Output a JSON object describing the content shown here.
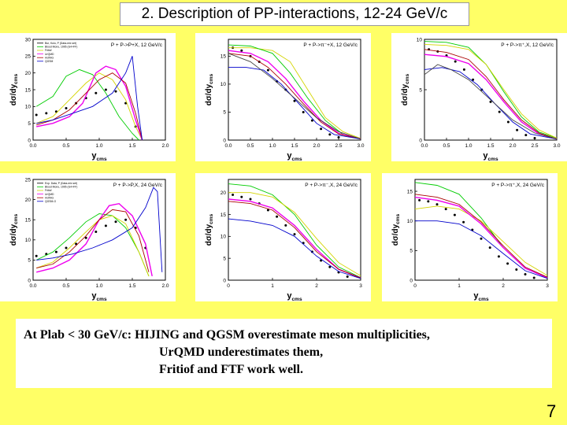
{
  "slide": {
    "title": "2. Description of PP-interactions, 12-24 GeV/c",
    "page_number": "7",
    "notes": [
      "At Plab < 30 GeV/c: HIJING and QGSM overestimate meson multiplicities,",
      "UrQMD underestimates them,",
      "Fritiof and FTF work well."
    ]
  },
  "colors": {
    "data": "#000000",
    "geant4": "#000000",
    "fritiof": "#d4d400",
    "ftf": "#ee00ee",
    "urqmd": "#0000cc",
    "hijing": "#00cc00",
    "qgsm": "#aa0000",
    "extra": "#444444"
  },
  "chart_data": [
    {
      "type": "line",
      "title": "P + P->P+X, 12 GeV/c",
      "xlabel": "y",
      "xlabel_sub": "cms",
      "ylabel": "dσ/dy",
      "ylabel_sub": "cms",
      "xlim": [
        0,
        2
      ],
      "ylim": [
        0,
        30
      ],
      "xticks": [
        "0.0",
        "0.5",
        "1.0",
        "1.5",
        "2.0"
      ],
      "yticks": [
        "0",
        "5",
        "10",
        "15",
        "20",
        "25",
        "30"
      ],
      "legend": [
        "Bur, Kulu, P (Data-mix set)",
        "Blood Mono, 1995 (G4+FF)",
        "Fritiof",
        "UrQMD",
        "HIJING",
        "QGSM"
      ],
      "series": [
        {
          "color_key": "data",
          "marker": true,
          "x": [
            0.05,
            0.2,
            0.35,
            0.5,
            0.65,
            0.8,
            0.95,
            1.1,
            1.25,
            1.4,
            1.55
          ],
          "y": [
            7.5,
            8,
            8.5,
            9.5,
            11,
            12.5,
            14,
            15,
            14.5,
            11,
            4
          ]
        },
        {
          "color_key": "hijing",
          "x": [
            0.05,
            0.3,
            0.5,
            0.7,
            0.9,
            1.1,
            1.3,
            1.5,
            1.6
          ],
          "y": [
            10,
            13,
            19,
            21,
            19.5,
            14,
            7,
            2,
            0
          ]
        },
        {
          "color_key": "fritiof",
          "x": [
            0.05,
            0.3,
            0.55,
            0.8,
            1.0,
            1.2,
            1.4,
            1.55,
            1.65
          ],
          "y": [
            5,
            7,
            12,
            17,
            20,
            18,
            12,
            4,
            0
          ]
        },
        {
          "color_key": "ftf",
          "x": [
            0.05,
            0.3,
            0.55,
            0.75,
            0.95,
            1.1,
            1.25,
            1.4,
            1.55,
            1.65
          ],
          "y": [
            4,
            5,
            7,
            11,
            20,
            22,
            21,
            16,
            6,
            0
          ]
        },
        {
          "color_key": "qgsm",
          "x": [
            0.05,
            0.3,
            0.55,
            0.8,
            1.0,
            1.2,
            1.4,
            1.55,
            1.65
          ],
          "y": [
            4.5,
            6,
            9,
            14,
            18,
            20,
            17,
            8,
            0
          ]
        },
        {
          "color_key": "urqmd",
          "x": [
            0.05,
            0.3,
            0.6,
            0.9,
            1.2,
            1.4,
            1.5,
            1.58,
            1.65
          ],
          "y": [
            5,
            6,
            8,
            10,
            14,
            20,
            25,
            10,
            0
          ]
        }
      ]
    },
    {
      "type": "line",
      "title": "P + P->π⁻+X, 12 GeV/c",
      "xlabel": "y",
      "xlabel_sub": "cms",
      "ylabel": "dσ/dy",
      "ylabel_sub": "cms",
      "xlim": [
        0,
        3
      ],
      "ylim": [
        0,
        18
      ],
      "xticks": [
        "0.0",
        "0.5",
        "1.0",
        "1.5",
        "2.0",
        "2.5",
        "3.0"
      ],
      "yticks": [
        "0",
        "5",
        "10",
        "15"
      ],
      "legend": [],
      "series": [
        {
          "color_key": "data",
          "marker": true,
          "x": [
            0.1,
            0.3,
            0.5,
            0.7,
            0.9,
            1.1,
            1.3,
            1.5,
            1.7,
            1.9,
            2.1,
            2.3,
            2.5
          ],
          "y": [
            16.5,
            16,
            15,
            14,
            12.5,
            10.5,
            9,
            7,
            5,
            3.5,
            2,
            1,
            0.5
          ]
        },
        {
          "color_key": "fritiof",
          "x": [
            0,
            0.5,
            1.0,
            1.4,
            1.8,
            2.2,
            2.6,
            3.0
          ],
          "y": [
            16.5,
            16.5,
            16,
            14,
            9,
            4,
            1.5,
            0.3
          ]
        },
        {
          "color_key": "hijing",
          "x": [
            0,
            0.5,
            1.0,
            1.4,
            1.8,
            2.2,
            2.6,
            3.0
          ],
          "y": [
            17,
            16.8,
            15.5,
            12,
            7.5,
            3.5,
            1,
            0.2
          ]
        },
        {
          "color_key": "ftf",
          "x": [
            0,
            0.5,
            0.9,
            1.3,
            1.7,
            2.1,
            2.5,
            3.0
          ],
          "y": [
            16,
            15.5,
            14,
            11,
            7,
            3.5,
            1.2,
            0.2
          ]
        },
        {
          "color_key": "qgsm",
          "x": [
            0,
            0.5,
            0.9,
            1.3,
            1.7,
            2.1,
            2.5,
            3.0
          ],
          "y": [
            15.5,
            15,
            13,
            10,
            6.5,
            3.2,
            1.1,
            0.2
          ]
        },
        {
          "color_key": "urqmd",
          "x": [
            0,
            0.4,
            0.8,
            1.2,
            1.6,
            2.0,
            2.4,
            3.0
          ],
          "y": [
            13,
            13,
            12.5,
            10,
            6.5,
            3,
            1,
            0.2
          ]
        },
        {
          "color_key": "extra",
          "x": [
            0,
            0.5,
            1.0,
            1.5,
            2.0,
            2.5,
            3.0
          ],
          "y": [
            15.5,
            14,
            11,
            7.5,
            4,
            1.5,
            0.2
          ]
        }
      ]
    },
    {
      "type": "line",
      "title": "P + P->π⁺,X, 12 GeV/c",
      "xlabel": "y",
      "xlabel_sub": "cms",
      "ylabel": "dσ/dy",
      "ylabel_sub": "cms",
      "xlim": [
        0,
        3
      ],
      "ylim": [
        0,
        10
      ],
      "xticks": [
        "0.0",
        "0.5",
        "1.0",
        "1.5",
        "2.0",
        "2.5",
        "3.0"
      ],
      "yticks": [
        "0",
        "5",
        "10"
      ],
      "legend": [],
      "series": [
        {
          "color_key": "data",
          "marker": true,
          "x": [
            0.1,
            0.3,
            0.5,
            0.7,
            0.9,
            1.1,
            1.3,
            1.5,
            1.7,
            1.9,
            2.1,
            2.3,
            2.5
          ],
          "y": [
            9,
            8.8,
            8.4,
            7.8,
            7,
            6,
            5,
            3.8,
            2.8,
            1.8,
            1,
            0.5,
            0.2
          ]
        },
        {
          "color_key": "hijing",
          "x": [
            0,
            0.5,
            1.0,
            1.4,
            1.8,
            2.2,
            2.6,
            3.0
          ],
          "y": [
            9.8,
            9.7,
            9.2,
            7.5,
            4.8,
            2.3,
            0.8,
            0.2
          ]
        },
        {
          "color_key": "fritiof",
          "x": [
            0,
            0.5,
            1.0,
            1.4,
            1.8,
            2.2,
            2.6,
            3.0
          ],
          "y": [
            9.5,
            9.4,
            9,
            7.5,
            5,
            2.6,
            1,
            0.2
          ]
        },
        {
          "color_key": "ftf",
          "x": [
            0,
            0.5,
            1.0,
            1.4,
            1.8,
            2.2,
            2.6,
            3.0
          ],
          "y": [
            8.5,
            8.3,
            7.6,
            6,
            3.8,
            1.8,
            0.6,
            0.1
          ]
        },
        {
          "color_key": "qgsm",
          "x": [
            0,
            0.5,
            1.0,
            1.4,
            1.8,
            2.2,
            2.6,
            3.0
          ],
          "y": [
            9,
            8.7,
            8,
            6.3,
            4,
            2,
            0.7,
            0.1
          ]
        },
        {
          "color_key": "urqmd",
          "x": [
            0,
            0.4,
            0.8,
            1.2,
            1.6,
            2.0,
            2.4,
            3.0
          ],
          "y": [
            7,
            7.2,
            6.8,
            5.5,
            3.6,
            1.8,
            0.6,
            0.1
          ]
        },
        {
          "color_key": "extra",
          "x": [
            0,
            0.3,
            0.6,
            1.0,
            1.5,
            2.0,
            2.5,
            3.0
          ],
          "y": [
            6.5,
            7.5,
            7,
            6,
            4,
            2,
            0.7,
            0.1
          ]
        }
      ]
    },
    {
      "type": "line",
      "title": "P + P->P,X, 24 GeV/c",
      "xlabel": "y",
      "xlabel_sub": "cms",
      "ylabel": "dσ/dy",
      "ylabel_sub": "cms",
      "xlim": [
        0,
        2
      ],
      "ylim": [
        0,
        25
      ],
      "xticks": [
        "0.0",
        "0.5",
        "1.0",
        "1.5",
        "2.0"
      ],
      "yticks": [
        "0",
        "5",
        "10",
        "15",
        "20",
        "25"
      ],
      "legend": [
        "Exp. Data, P (Data-mix set)",
        "Blood Mono, 1995 (G4+FF)",
        "Fritiof",
        "UrQMD",
        "HIJING",
        "QGSM-G"
      ],
      "series": [
        {
          "color_key": "data",
          "marker": true,
          "x": [
            0.05,
            0.2,
            0.35,
            0.5,
            0.65,
            0.8,
            0.95,
            1.1,
            1.25,
            1.4,
            1.55,
            1.7
          ],
          "y": [
            6,
            6.5,
            7,
            8,
            9,
            10.5,
            12,
            13.5,
            14.5,
            15,
            13,
            8
          ]
        },
        {
          "color_key": "hijing",
          "x": [
            0.05,
            0.3,
            0.55,
            0.8,
            1.0,
            1.2,
            1.4,
            1.6,
            1.75
          ],
          "y": [
            5,
            7,
            10.5,
            14.5,
            16.5,
            16,
            13,
            7,
            1
          ]
        },
        {
          "color_key": "fritiof",
          "x": [
            0.05,
            0.3,
            0.55,
            0.8,
            1.0,
            1.2,
            1.4,
            1.6,
            1.75
          ],
          "y": [
            3,
            4.5,
            8,
            12,
            15,
            16,
            14,
            7,
            1
          ]
        },
        {
          "color_key": "ftf",
          "x": [
            0.05,
            0.3,
            0.55,
            0.8,
            1.0,
            1.15,
            1.3,
            1.5,
            1.7,
            1.8
          ],
          "y": [
            2,
            3,
            5,
            9,
            15,
            18.5,
            19,
            16,
            9,
            1
          ]
        },
        {
          "color_key": "qgsm",
          "x": [
            0.05,
            0.3,
            0.55,
            0.8,
            1.0,
            1.2,
            1.4,
            1.6,
            1.75
          ],
          "y": [
            3,
            4,
            7,
            11,
            15,
            17.5,
            17,
            11,
            2
          ]
        },
        {
          "color_key": "urqmd",
          "x": [
            0.05,
            0.3,
            0.6,
            0.9,
            1.2,
            1.5,
            1.7,
            1.82,
            1.88,
            1.95
          ],
          "y": [
            5,
            5.5,
            6.5,
            8,
            10,
            13,
            18,
            23,
            22,
            2
          ]
        }
      ]
    },
    {
      "type": "line",
      "title": "P + P->π⁻,X, 24 GeV/c",
      "xlabel": "y",
      "xlabel_sub": "cms",
      "ylabel": "dσ/dy",
      "ylabel_sub": "cms",
      "xlim": [
        0,
        3
      ],
      "ylim": [
        0,
        23
      ],
      "xticks": [
        "0",
        "1",
        "2",
        "3"
      ],
      "yticks": [
        "0",
        "5",
        "10",
        "15",
        "20"
      ],
      "legend": [],
      "series": [
        {
          "color_key": "data",
          "marker": true,
          "x": [
            0.1,
            0.3,
            0.5,
            0.7,
            0.9,
            1.1,
            1.3,
            1.5,
            1.7,
            1.9,
            2.1,
            2.3,
            2.5,
            2.7
          ],
          "y": [
            19.5,
            19,
            18.5,
            17.5,
            16,
            14.5,
            12.5,
            10.5,
            8.5,
            6.5,
            4.5,
            3,
            1.8,
            0.8
          ]
        },
        {
          "color_key": "hijing",
          "x": [
            0,
            0.5,
            1.0,
            1.5,
            2.0,
            2.5,
            3.0
          ],
          "y": [
            22,
            21.5,
            19.5,
            15,
            8,
            3,
            0.6
          ]
        },
        {
          "color_key": "fritiof",
          "x": [
            0,
            0.5,
            1.0,
            1.5,
            2.0,
            2.5,
            3.0
          ],
          "y": [
            20,
            20,
            19,
            15.5,
            9.5,
            4,
            1
          ]
        },
        {
          "color_key": "ftf",
          "x": [
            0,
            0.5,
            1.0,
            1.5,
            2.0,
            2.5,
            3.0
          ],
          "y": [
            18.5,
            18,
            16.5,
            12.5,
            7,
            2.5,
            0.5
          ]
        },
        {
          "color_key": "qgsm",
          "x": [
            0,
            0.5,
            1.0,
            1.5,
            2.0,
            2.5,
            3.0
          ],
          "y": [
            18,
            17.5,
            16,
            12,
            6.5,
            2.5,
            0.5
          ]
        },
        {
          "color_key": "urqmd",
          "x": [
            0,
            0.5,
            1.0,
            1.5,
            2.0,
            2.5,
            3.0
          ],
          "y": [
            14,
            13.5,
            12.5,
            10,
            5.5,
            2,
            0.4
          ]
        }
      ]
    },
    {
      "type": "line",
      "title": "P + P->π⁺,X, 24 GeV/c",
      "xlabel": "y",
      "xlabel_sub": "cms",
      "ylabel": "dσ/dy",
      "ylabel_sub": "cms",
      "xlim": [
        0,
        3
      ],
      "ylim": [
        0,
        17
      ],
      "xticks": [
        "0",
        "1",
        "2",
        "3"
      ],
      "yticks": [
        "0",
        "5",
        "10",
        "15"
      ],
      "legend": [],
      "series": [
        {
          "color_key": "data",
          "marker": true,
          "x": [
            0.1,
            0.3,
            0.5,
            0.7,
            0.9,
            1.1,
            1.3,
            1.5,
            1.7,
            1.9,
            2.1,
            2.3,
            2.5,
            2.7
          ],
          "y": [
            13.5,
            13.3,
            12.8,
            12,
            11,
            9.8,
            8.5,
            7,
            5.5,
            4,
            2.8,
            1.8,
            1,
            0.4
          ]
        },
        {
          "color_key": "hijing",
          "x": [
            0,
            0.5,
            1.0,
            1.5,
            2.0,
            2.5,
            3.0
          ],
          "y": [
            16.5,
            16,
            14.5,
            10.5,
            5.5,
            2,
            0.4
          ]
        },
        {
          "color_key": "fritiof",
          "x": [
            0,
            0.5,
            1.0,
            1.5,
            2.0,
            2.5,
            3.0
          ],
          "y": [
            12,
            12.5,
            12,
            10,
            6.5,
            3,
            0.8
          ]
        },
        {
          "color_key": "ftf",
          "x": [
            0,
            0.5,
            1.0,
            1.5,
            2.0,
            2.5,
            3.0
          ],
          "y": [
            14,
            13.5,
            12.5,
            9.5,
            5.5,
            2,
            0.4
          ]
        },
        {
          "color_key": "qgsm",
          "x": [
            0,
            0.5,
            1.0,
            1.5,
            2.0,
            2.5,
            3.0
          ],
          "y": [
            14.5,
            14,
            12.8,
            9.8,
            5.8,
            2.2,
            0.5
          ]
        },
        {
          "color_key": "urqmd",
          "x": [
            0,
            0.5,
            1.0,
            1.5,
            2.0,
            2.5,
            3.0
          ],
          "y": [
            10,
            10,
            9.5,
            7.5,
            4.5,
            1.6,
            0.3
          ]
        }
      ]
    }
  ]
}
